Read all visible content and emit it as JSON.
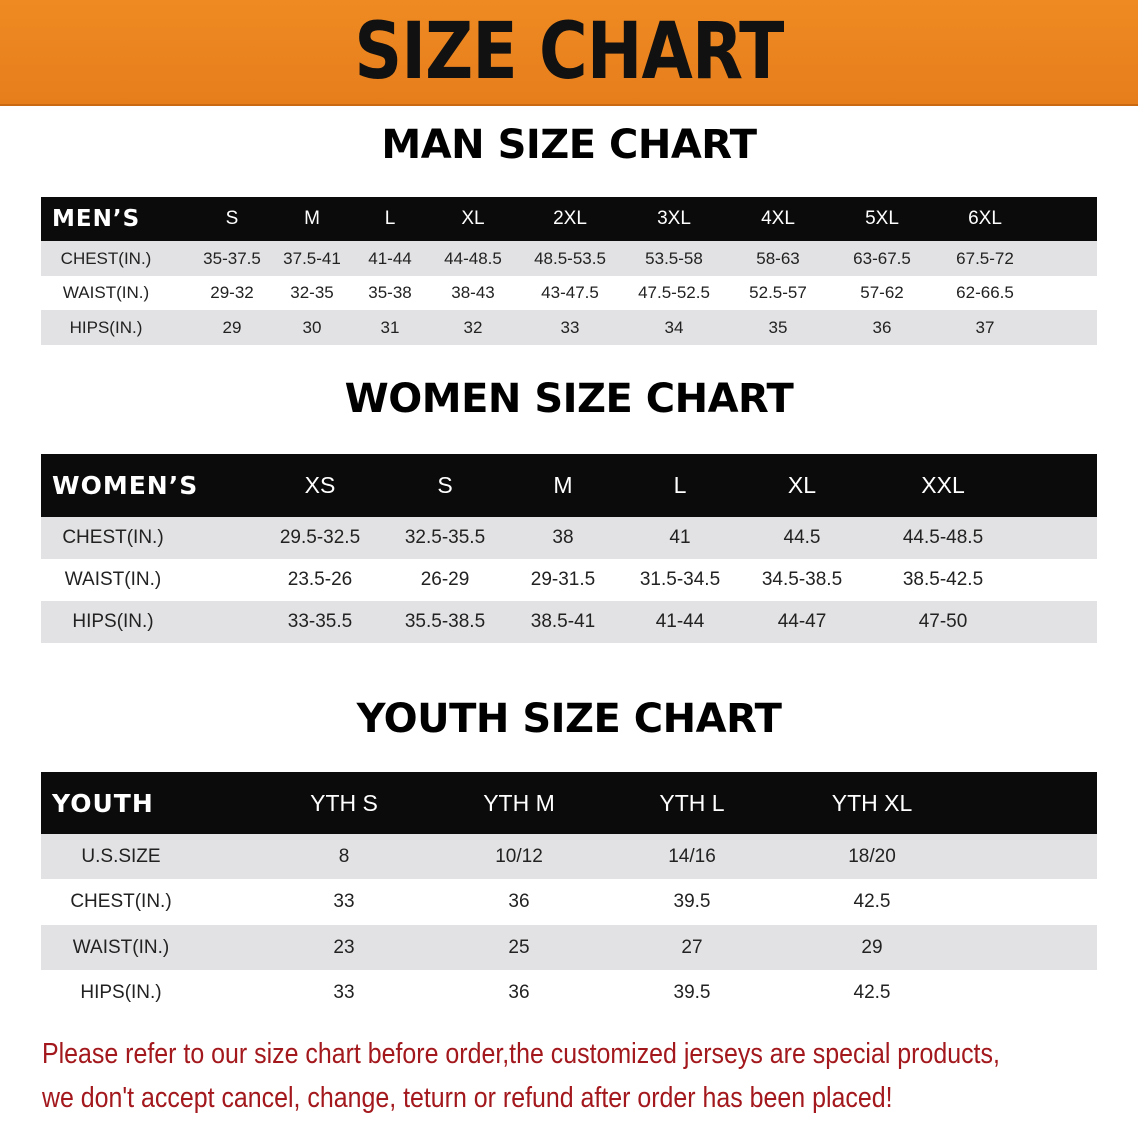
{
  "banner": {
    "title": "SIZE CHART",
    "color": "#e98320"
  },
  "men": {
    "title": "MAN SIZE CHART",
    "header": "MEN’S",
    "sizes": [
      "S",
      "M",
      "L",
      "XL",
      "2XL",
      "3XL",
      "4XL",
      "5XL",
      "6XL"
    ],
    "rows": [
      {
        "label": "CHEST(IN.)",
        "values": [
          "35-37.5",
          "37.5-41",
          "41-44",
          "44-48.5",
          "48.5-53.5",
          "53.5-58",
          "58-63",
          "63-67.5",
          "67.5-72"
        ]
      },
      {
        "label": "WAIST(IN.)",
        "values": [
          "29-32",
          "32-35",
          "35-38",
          "38-43",
          "43-47.5",
          "47.5-52.5",
          "52.5-57",
          "57-62",
          "62-66.5"
        ]
      },
      {
        "label": "HIPS(IN.)",
        "values": [
          "29",
          "30",
          "31",
          "32",
          "33",
          "34",
          "35",
          "36",
          "37"
        ]
      }
    ]
  },
  "women": {
    "title": "WOMEN SIZE CHART",
    "header": "WOMEN’S",
    "sizes": [
      "XS",
      "S",
      "M",
      "L",
      "XL",
      "XXL"
    ],
    "rows": [
      {
        "label": "CHEST(IN.)",
        "values": [
          "29.5-32.5",
          "32.5-35.5",
          "38",
          "41",
          "44.5",
          "44.5-48.5"
        ]
      },
      {
        "label": "WAIST(IN.)",
        "values": [
          "23.5-26",
          "26-29",
          "29-31.5",
          "31.5-34.5",
          "34.5-38.5",
          "38.5-42.5"
        ]
      },
      {
        "label": "HIPS(IN.)",
        "values": [
          "33-35.5",
          "35.5-38.5",
          "38.5-41",
          "41-44",
          "44-47",
          "47-50"
        ]
      }
    ]
  },
  "youth": {
    "title": "YOUTH SIZE CHART",
    "header": "YOUTH",
    "sizes": [
      "YTH S",
      "YTH M",
      "YTH L",
      "YTH XL"
    ],
    "rows": [
      {
        "label": "U.S.SIZE",
        "values": [
          "8",
          "10/12",
          "14/16",
          "18/20"
        ]
      },
      {
        "label": "CHEST(IN.)",
        "values": [
          "33",
          "36",
          "39.5",
          "42.5"
        ]
      },
      {
        "label": "WAIST(IN.)",
        "values": [
          "23",
          "25",
          "27",
          "29"
        ]
      },
      {
        "label": "HIPS(IN.)",
        "values": [
          "33",
          "36",
          "39.5",
          "42.5"
        ]
      }
    ]
  },
  "notice": {
    "line1": "Please refer to our size chart before order,the customized jerseys are special products,",
    "line2": "we don't accept cancel, change, teturn or refund after order has been placed!",
    "color": "#a3181c"
  }
}
